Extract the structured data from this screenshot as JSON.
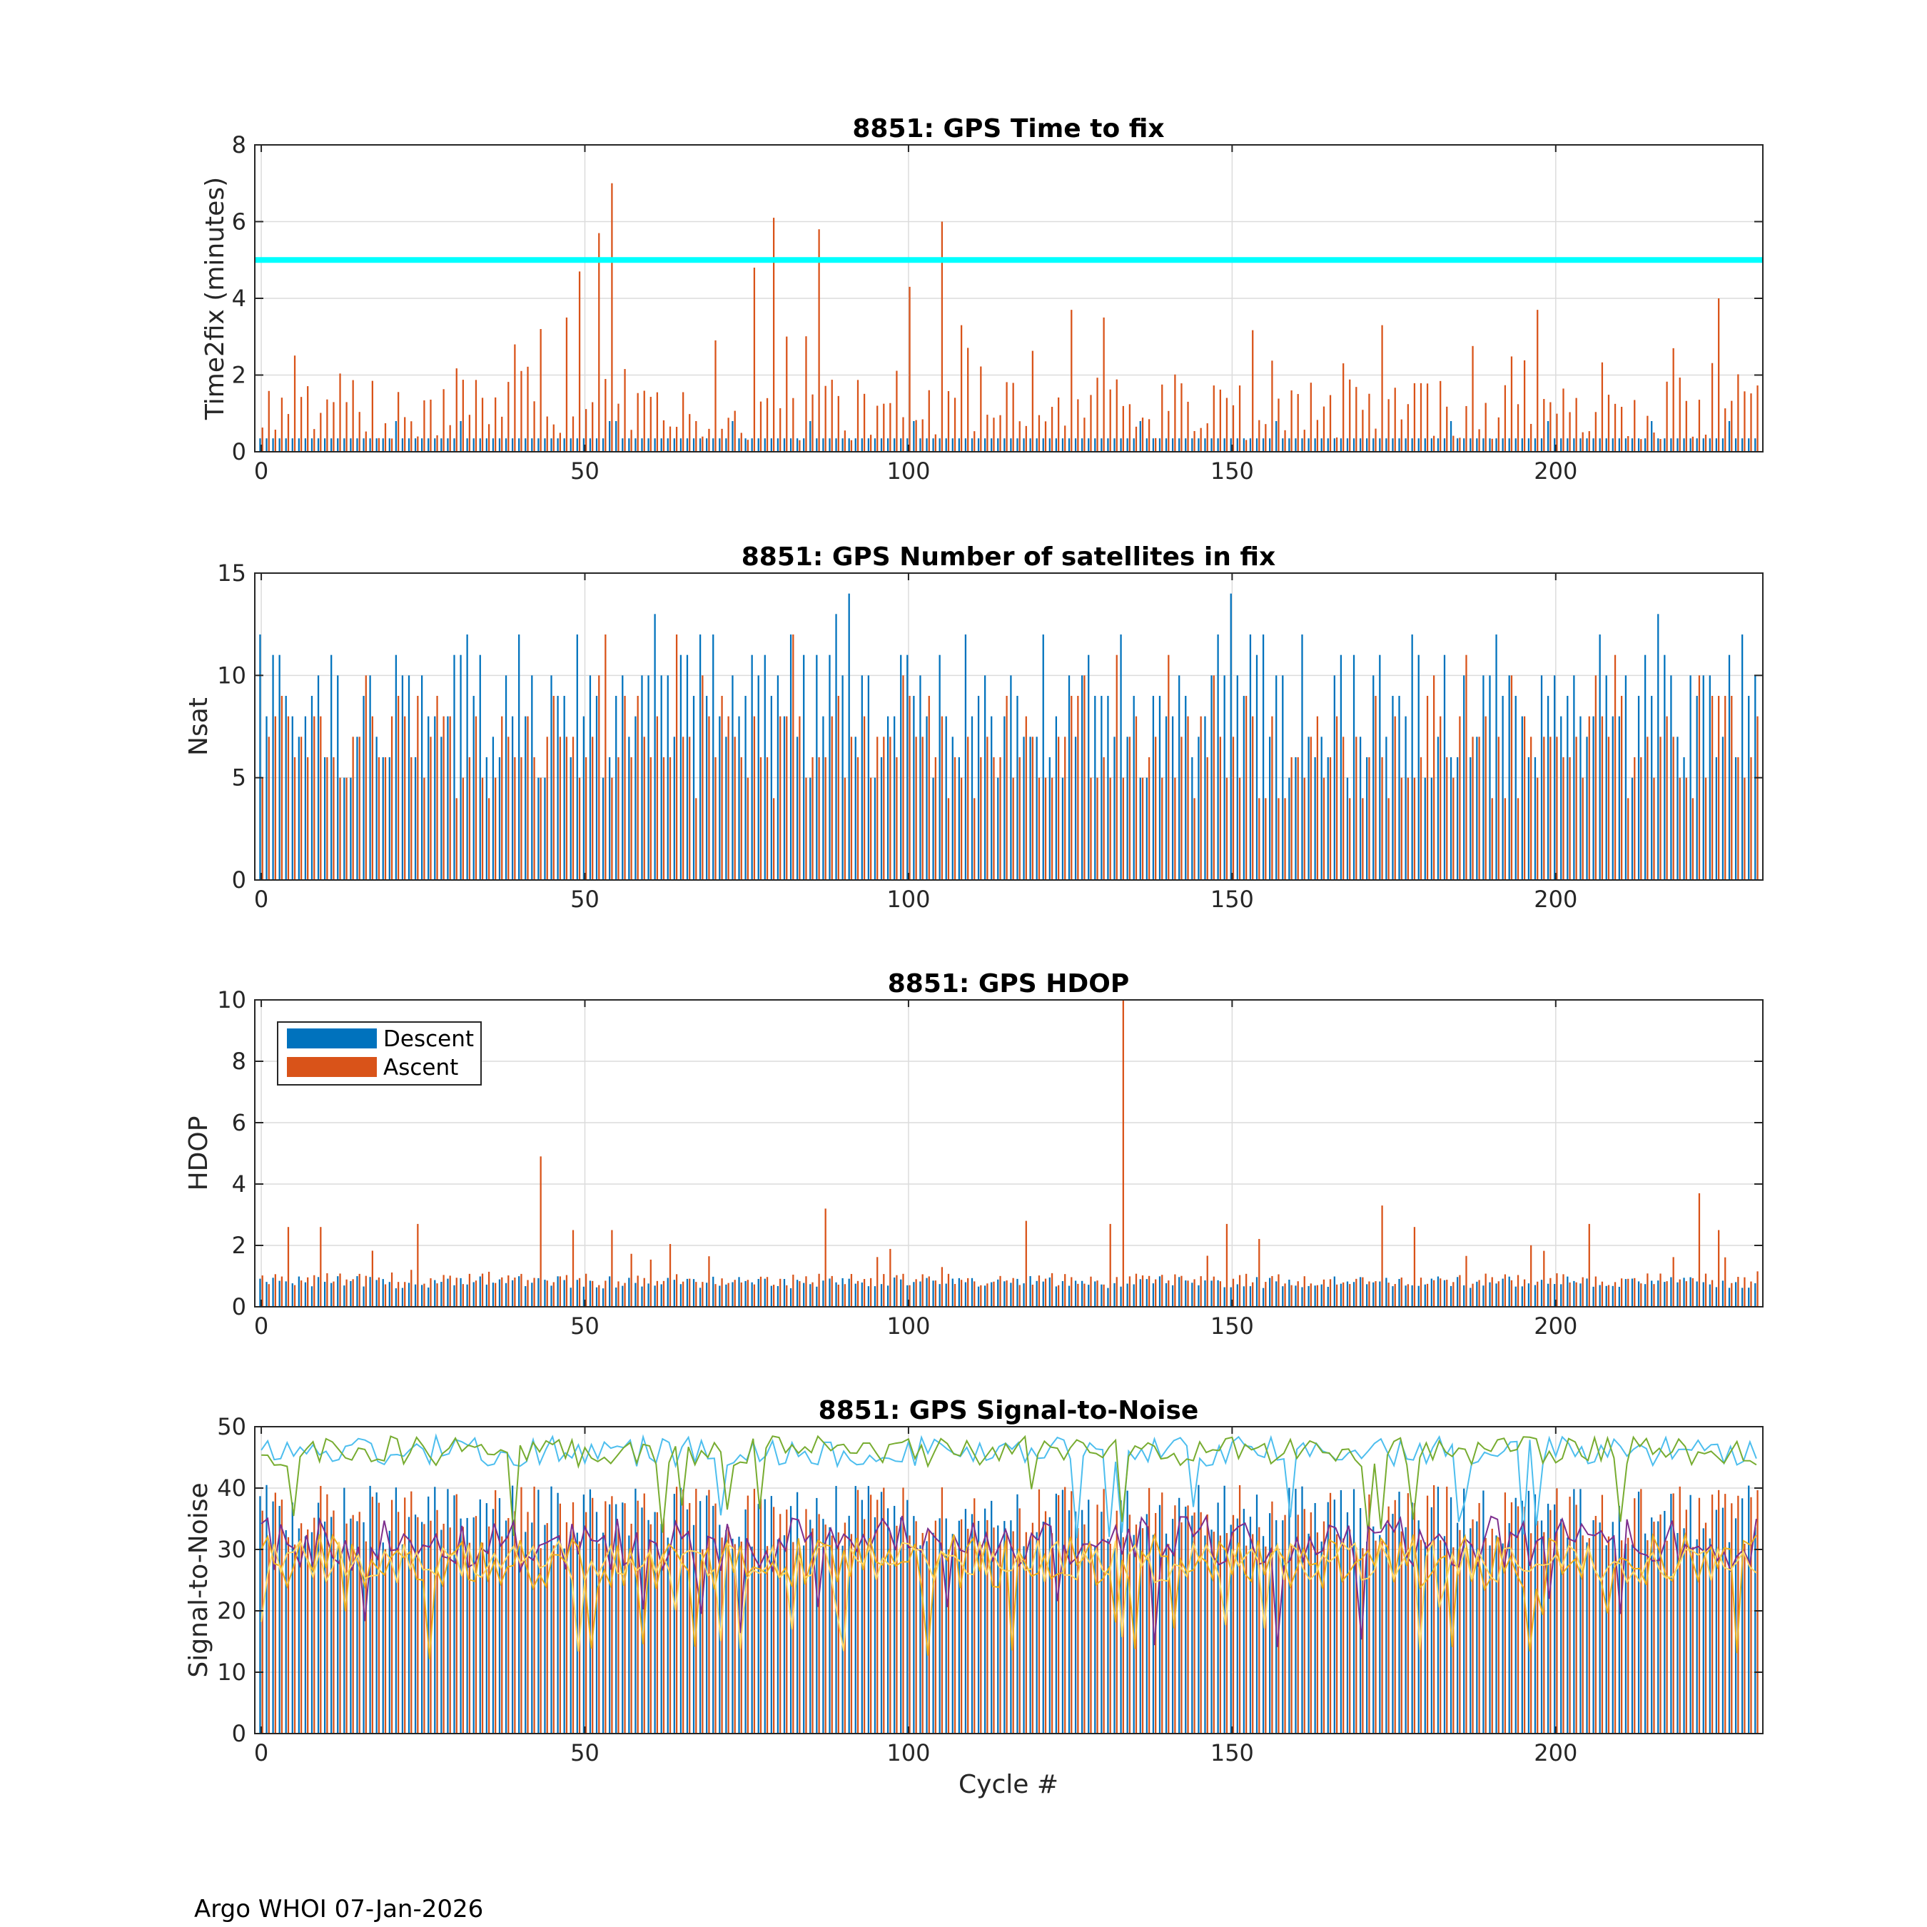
{
  "footer": "Argo WHOI 07-Jan-2026",
  "legend": {
    "descent": "Descent",
    "ascent": "Ascent"
  },
  "colors": {
    "descent": "#0072bd",
    "ascent": "#d95319",
    "threshold": "#00ffff",
    "snr_lines": [
      "#4dbeee",
      "#77ac30",
      "#7e2f8e",
      "#edb120",
      "#ffd966"
    ]
  },
  "chart_data": [
    {
      "id": "time2fix",
      "type": "bar",
      "title": "8851: GPS Time to fix",
      "xlabel": "",
      "ylabel": "Time2fix (minutes)",
      "xlim": [
        -1,
        232
      ],
      "ylim": [
        0,
        8
      ],
      "xticks": [
        0,
        50,
        100,
        150,
        200
      ],
      "yticks": [
        0,
        2,
        4,
        6,
        8
      ],
      "grid": true,
      "threshold": 5,
      "spikes": {
        "43": 3.2,
        "47": 3.5,
        "49": 4.7,
        "52": 5.7,
        "54": 7.0,
        "76": 4.8,
        "79": 6.1,
        "86": 5.8,
        "100": 4.3,
        "105": 6.0,
        "108": 3.3,
        "125": 3.7,
        "130": 3.5,
        "173": 3.3,
        "197": 3.7,
        "225": 4.0,
        "218": 2.7
      },
      "series": [
        {
          "name": "Descent",
          "typical": 0.35,
          "note": "nearly constant ~0.35 min every cycle"
        },
        {
          "name": "Ascent",
          "range": [
            0.3,
            3.0
          ],
          "note": "varies per cycle with spikes listed above"
        }
      ]
    },
    {
      "id": "nsat",
      "type": "bar",
      "title": "8851: GPS Number of satellites in fix",
      "xlabel": "",
      "ylabel": "Nsat",
      "xlim": [
        -1,
        232
      ],
      "ylim": [
        0,
        15
      ],
      "xticks": [
        0,
        50,
        100,
        150,
        200
      ],
      "yticks": [
        0,
        5,
        10,
        15
      ],
      "grid": true,
      "series": [
        {
          "name": "Descent",
          "range": [
            5,
            15
          ]
        },
        {
          "name": "Ascent",
          "range": [
            4,
            13
          ]
        }
      ]
    },
    {
      "id": "hdop",
      "type": "bar",
      "title": "8851: GPS HDOP",
      "xlabel": "",
      "ylabel": "HDOP",
      "xlim": [
        -1,
        232
      ],
      "ylim": [
        0,
        10
      ],
      "xticks": [
        0,
        50,
        100,
        150,
        200
      ],
      "yticks": [
        0,
        2,
        4,
        6,
        8,
        10
      ],
      "grid": true,
      "legend_position": "top-left",
      "spikes": {
        "4": 2.6,
        "9": 2.6,
        "24": 2.7,
        "43": 4.9,
        "48": 2.5,
        "54": 2.5,
        "87": 3.2,
        "118": 2.8,
        "131": 2.7,
        "133": 10.0,
        "149": 2.7,
        "173": 3.3,
        "178": 2.6,
        "205": 2.7,
        "222": 3.7,
        "225": 2.5
      },
      "series": [
        {
          "name": "Descent",
          "typical": 0.75
        },
        {
          "name": "Ascent",
          "typical": 0.9
        }
      ]
    },
    {
      "id": "snr",
      "type": "bar+line",
      "title": "8851: GPS Signal-to-Noise",
      "xlabel": "Cycle #",
      "ylabel": "Signal-to-Noise",
      "xlim": [
        -1,
        232
      ],
      "ylim": [
        0,
        50
      ],
      "xticks": [
        0,
        50,
        100,
        150,
        200
      ],
      "yticks": [
        0,
        10,
        20,
        30,
        40,
        50
      ],
      "grid": true,
      "series": [
        {
          "name": "Descent bars",
          "range": [
            30,
            41
          ]
        },
        {
          "name": "Ascent bars",
          "range": [
            30,
            41
          ]
        },
        {
          "name": "line 1",
          "typical": 46
        },
        {
          "name": "line 2",
          "typical": 46
        },
        {
          "name": "line 3",
          "typical": 31
        },
        {
          "name": "line 4",
          "typical": 28
        },
        {
          "name": "line 5",
          "typical": 28
        }
      ]
    }
  ]
}
